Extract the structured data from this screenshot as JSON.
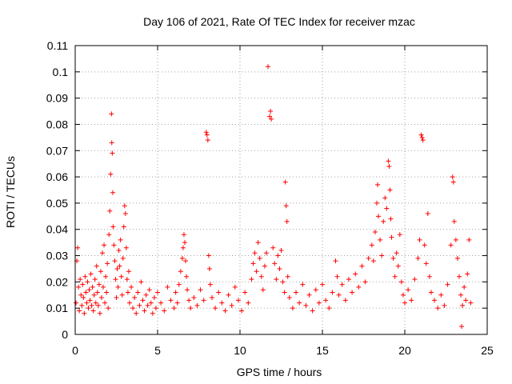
{
  "chart_data": {
    "type": "scatter",
    "title": "Day 106 of 2021, Rate Of TEC Index for receiver mzac",
    "xlabel": "GPS time / hours",
    "ylabel": "ROTI / TECUs",
    "xlim": [
      0,
      25
    ],
    "ylim": [
      0,
      0.11
    ],
    "x_ticks": [
      "0",
      "5",
      "10",
      "15",
      "20",
      "25"
    ],
    "y_ticks": [
      "0",
      "0.01",
      "0.02",
      "0.03",
      "0.04",
      "0.05",
      "0.06",
      "0.07",
      "0.08",
      "0.09",
      "0.1",
      "0.11"
    ],
    "grid": true,
    "marker": "plus",
    "color": "#ff0000",
    "series": [
      {
        "points": [
          [
            0.05,
            0.012
          ],
          [
            0.1,
            0.028
          ],
          [
            0.15,
            0.033
          ],
          [
            0.2,
            0.018
          ],
          [
            0.25,
            0.009
          ],
          [
            0.3,
            0.021
          ],
          [
            0.35,
            0.015
          ],
          [
            0.4,
            0.011
          ],
          [
            0.45,
            0.019
          ],
          [
            0.5,
            0.014
          ],
          [
            0.55,
            0.008
          ],
          [
            0.6,
            0.022
          ],
          [
            0.65,
            0.016
          ],
          [
            0.7,
            0.012
          ],
          [
            0.75,
            0.02
          ],
          [
            0.8,
            0.01
          ],
          [
            0.85,
            0.017
          ],
          [
            0.9,
            0.013
          ],
          [
            0.95,
            0.023
          ],
          [
            1.0,
            0.011
          ],
          [
            1.05,
            0.018
          ],
          [
            1.1,
            0.009
          ],
          [
            1.15,
            0.015
          ],
          [
            1.2,
            0.021
          ],
          [
            1.25,
            0.012
          ],
          [
            1.3,
            0.026
          ],
          [
            1.35,
            0.016
          ],
          [
            1.4,
            0.011
          ],
          [
            1.45,
            0.019
          ],
          [
            1.5,
            0.008
          ],
          [
            1.55,
            0.024
          ],
          [
            1.6,
            0.014
          ],
          [
            1.65,
            0.031
          ],
          [
            1.7,
            0.018
          ],
          [
            1.75,
            0.034
          ],
          [
            1.8,
            0.012
          ],
          [
            1.85,
            0.022
          ],
          [
            1.9,
            0.016
          ],
          [
            1.95,
            0.027
          ],
          [
            2.0,
            0.01
          ],
          [
            2.05,
            0.038
          ],
          [
            2.1,
            0.047
          ],
          [
            2.15,
            0.061
          ],
          [
            2.2,
            0.084
          ],
          [
            2.22,
            0.073
          ],
          [
            2.25,
            0.069
          ],
          [
            2.28,
            0.054
          ],
          [
            2.3,
            0.041
          ],
          [
            2.35,
            0.034
          ],
          [
            2.4,
            0.028
          ],
          [
            2.45,
            0.021
          ],
          [
            2.5,
            0.014
          ],
          [
            2.55,
            0.025
          ],
          [
            2.6,
            0.018
          ],
          [
            2.65,
            0.032
          ],
          [
            2.7,
            0.026
          ],
          [
            2.75,
            0.036
          ],
          [
            2.8,
            0.022
          ],
          [
            2.85,
            0.015
          ],
          [
            2.9,
            0.029
          ],
          [
            2.95,
            0.041
          ],
          [
            3.0,
            0.049
          ],
          [
            3.05,
            0.046
          ],
          [
            3.1,
            0.033
          ],
          [
            3.15,
            0.021
          ],
          [
            3.2,
            0.016
          ],
          [
            3.25,
            0.024
          ],
          [
            3.3,
            0.012
          ],
          [
            3.4,
            0.018
          ],
          [
            3.5,
            0.01
          ],
          [
            3.6,
            0.014
          ],
          [
            3.7,
            0.008
          ],
          [
            3.8,
            0.016
          ],
          [
            3.9,
            0.011
          ],
          [
            4.0,
            0.02
          ],
          [
            4.1,
            0.013
          ],
          [
            4.2,
            0.009
          ],
          [
            4.3,
            0.015
          ],
          [
            4.4,
            0.011
          ],
          [
            4.5,
            0.017
          ],
          [
            4.6,
            0.012
          ],
          [
            4.7,
            0.008
          ],
          [
            4.8,
            0.014
          ],
          [
            4.9,
            0.01
          ],
          [
            5.0,
            0.016
          ],
          [
            5.2,
            0.012
          ],
          [
            5.4,
            0.009
          ],
          [
            5.6,
            0.018
          ],
          [
            5.8,
            0.013
          ],
          [
            6.0,
            0.01
          ],
          [
            6.1,
            0.016
          ],
          [
            6.2,
            0.012
          ],
          [
            6.3,
            0.019
          ],
          [
            6.4,
            0.024
          ],
          [
            6.5,
            0.029
          ],
          [
            6.55,
            0.033
          ],
          [
            6.6,
            0.038
          ],
          [
            6.65,
            0.035
          ],
          [
            6.7,
            0.028
          ],
          [
            6.75,
            0.022
          ],
          [
            6.8,
            0.017
          ],
          [
            6.9,
            0.013
          ],
          [
            7.0,
            0.01
          ],
          [
            7.2,
            0.014
          ],
          [
            7.4,
            0.011
          ],
          [
            7.6,
            0.017
          ],
          [
            7.8,
            0.013
          ],
          [
            7.95,
            0.077
          ],
          [
            8.0,
            0.076
          ],
          [
            8.05,
            0.074
          ],
          [
            8.1,
            0.03
          ],
          [
            8.15,
            0.025
          ],
          [
            8.2,
            0.019
          ],
          [
            8.3,
            0.014
          ],
          [
            8.5,
            0.01
          ],
          [
            8.7,
            0.016
          ],
          [
            8.9,
            0.012
          ],
          [
            9.1,
            0.009
          ],
          [
            9.3,
            0.015
          ],
          [
            9.5,
            0.011
          ],
          [
            9.7,
            0.018
          ],
          [
            9.9,
            0.013
          ],
          [
            10.1,
            0.009
          ],
          [
            10.3,
            0.016
          ],
          [
            10.5,
            0.012
          ],
          [
            10.7,
            0.021
          ],
          [
            10.8,
            0.027
          ],
          [
            10.9,
            0.031
          ],
          [
            11.0,
            0.024
          ],
          [
            11.1,
            0.035
          ],
          [
            11.2,
            0.029
          ],
          [
            11.3,
            0.022
          ],
          [
            11.4,
            0.017
          ],
          [
            11.5,
            0.026
          ],
          [
            11.6,
            0.031
          ],
          [
            11.7,
            0.102
          ],
          [
            11.8,
            0.083
          ],
          [
            11.85,
            0.085
          ],
          [
            11.9,
            0.082
          ],
          [
            12.0,
            0.033
          ],
          [
            12.1,
            0.027
          ],
          [
            12.2,
            0.021
          ],
          [
            12.3,
            0.03
          ],
          [
            12.4,
            0.025
          ],
          [
            12.5,
            0.032
          ],
          [
            12.6,
            0.02
          ],
          [
            12.7,
            0.016
          ],
          [
            12.75,
            0.058
          ],
          [
            12.8,
            0.049
          ],
          [
            12.85,
            0.043
          ],
          [
            12.9,
            0.022
          ],
          [
            13.0,
            0.014
          ],
          [
            13.2,
            0.01
          ],
          [
            13.4,
            0.016
          ],
          [
            13.6,
            0.012
          ],
          [
            13.8,
            0.019
          ],
          [
            14.0,
            0.011
          ],
          [
            14.2,
            0.015
          ],
          [
            14.4,
            0.009
          ],
          [
            14.6,
            0.017
          ],
          [
            14.8,
            0.012
          ],
          [
            15.0,
            0.019
          ],
          [
            15.2,
            0.013
          ],
          [
            15.4,
            0.01
          ],
          [
            15.6,
            0.016
          ],
          [
            15.8,
            0.028
          ],
          [
            15.9,
            0.022
          ],
          [
            16.0,
            0.015
          ],
          [
            16.2,
            0.019
          ],
          [
            16.4,
            0.013
          ],
          [
            16.6,
            0.021
          ],
          [
            16.8,
            0.016
          ],
          [
            17.0,
            0.023
          ],
          [
            17.2,
            0.018
          ],
          [
            17.4,
            0.026
          ],
          [
            17.6,
            0.02
          ],
          [
            17.8,
            0.029
          ],
          [
            18.0,
            0.034
          ],
          [
            18.1,
            0.028
          ],
          [
            18.2,
            0.039
          ],
          [
            18.3,
            0.05
          ],
          [
            18.35,
            0.057
          ],
          [
            18.4,
            0.045
          ],
          [
            18.5,
            0.036
          ],
          [
            18.6,
            0.03
          ],
          [
            18.7,
            0.043
          ],
          [
            18.8,
            0.052
          ],
          [
            18.9,
            0.048
          ],
          [
            19.0,
            0.066
          ],
          [
            19.05,
            0.064
          ],
          [
            19.1,
            0.055
          ],
          [
            19.15,
            0.044
          ],
          [
            19.2,
            0.037
          ],
          [
            19.3,
            0.029
          ],
          [
            19.4,
            0.022
          ],
          [
            19.5,
            0.031
          ],
          [
            19.6,
            0.026
          ],
          [
            19.7,
            0.038
          ],
          [
            19.8,
            0.02
          ],
          [
            19.9,
            0.015
          ],
          [
            20.0,
            0.012
          ],
          [
            20.2,
            0.017
          ],
          [
            20.4,
            0.013
          ],
          [
            20.6,
            0.021
          ],
          [
            20.8,
            0.029
          ],
          [
            20.9,
            0.036
          ],
          [
            21.0,
            0.076
          ],
          [
            21.05,
            0.075
          ],
          [
            21.1,
            0.074
          ],
          [
            21.2,
            0.034
          ],
          [
            21.3,
            0.027
          ],
          [
            21.4,
            0.046
          ],
          [
            21.5,
            0.022
          ],
          [
            21.6,
            0.016
          ],
          [
            21.8,
            0.013
          ],
          [
            22.0,
            0.01
          ],
          [
            22.2,
            0.015
          ],
          [
            22.4,
            0.011
          ],
          [
            22.6,
            0.019
          ],
          [
            22.8,
            0.034
          ],
          [
            22.9,
            0.06
          ],
          [
            22.95,
            0.058
          ],
          [
            23.0,
            0.043
          ],
          [
            23.1,
            0.036
          ],
          [
            23.2,
            0.029
          ],
          [
            23.3,
            0.022
          ],
          [
            23.4,
            0.015
          ],
          [
            23.45,
            0.003
          ],
          [
            23.5,
            0.011
          ],
          [
            23.6,
            0.018
          ],
          [
            23.7,
            0.013
          ],
          [
            23.8,
            0.023
          ],
          [
            23.9,
            0.036
          ],
          [
            24.0,
            0.012
          ]
        ]
      }
    ]
  }
}
